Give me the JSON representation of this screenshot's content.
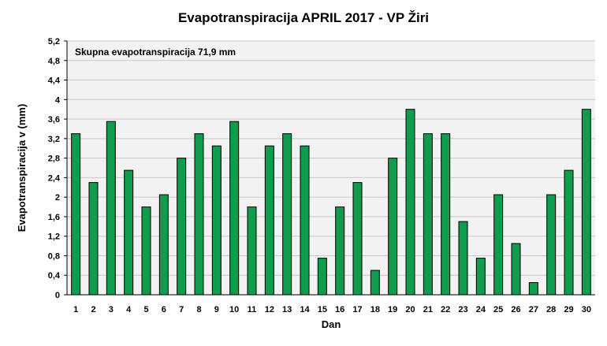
{
  "chart_data": {
    "type": "bar",
    "title": "Evapotranspiracija  APRIL 2017 - VP Žiri",
    "xlabel": "Dan",
    "ylabel": "Evapotranspiracija v  (mm)",
    "annotation": "Skupna evapotranspiracija  71,9 mm",
    "ylim": [
      0,
      5.2
    ],
    "yticks": [
      "0",
      "0,4",
      "0,8",
      "1,2",
      "1,6",
      "2",
      "2,4",
      "2,8",
      "3,2",
      "3,6",
      "4",
      "4,4",
      "4,8",
      "5,2"
    ],
    "categories": [
      "1",
      "2",
      "3",
      "4",
      "5",
      "6",
      "7",
      "8",
      "9",
      "10",
      "11",
      "12",
      "13",
      "14",
      "15",
      "16",
      "17",
      "18",
      "19",
      "20",
      "21",
      "22",
      "23",
      "24",
      "25",
      "26",
      "27",
      "28",
      "29",
      "30"
    ],
    "values": [
      3.3,
      2.3,
      3.55,
      2.55,
      1.8,
      2.05,
      2.8,
      3.3,
      3.05,
      3.55,
      1.8,
      3.05,
      3.3,
      3.05,
      0.75,
      1.8,
      2.3,
      0.5,
      2.8,
      3.8,
      3.3,
      3.3,
      1.5,
      0.75,
      2.05,
      1.05,
      0.25,
      2.05,
      2.55,
      3.8
    ],
    "grid": true,
    "colors": {
      "bar": "#109c4c",
      "bar_stroke": "#000000",
      "plot_bg": "#f2f2f2",
      "grid": "#c8c8c8"
    }
  }
}
